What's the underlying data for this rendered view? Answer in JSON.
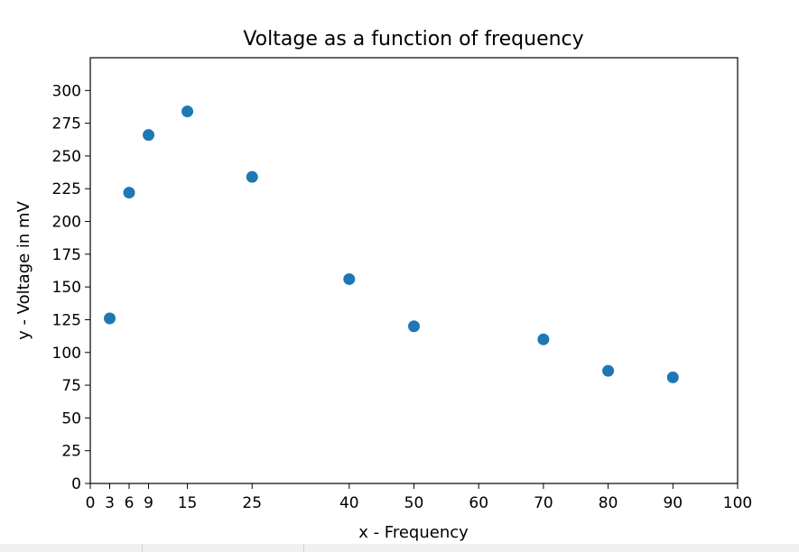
{
  "chart_data": {
    "type": "scatter",
    "title": "Voltage as a function of frequency",
    "xlabel": "x - Frequency",
    "ylabel": "y - Voltage in mV",
    "xlim": [
      0,
      100
    ],
    "ylim": [
      0,
      325
    ],
    "xticks": [
      0,
      3,
      6,
      9,
      15,
      25,
      40,
      50,
      60,
      70,
      80,
      90,
      100
    ],
    "yticks": [
      0,
      25,
      50,
      75,
      100,
      125,
      150,
      175,
      200,
      225,
      250,
      275,
      300
    ],
    "x": [
      3,
      6,
      9,
      15,
      25,
      40,
      50,
      70,
      80,
      90
    ],
    "y": [
      126,
      222,
      266,
      284,
      234,
      156,
      120,
      110,
      86,
      81
    ],
    "marker_color": "#1f77b4",
    "grid": false,
    "legend": false
  }
}
